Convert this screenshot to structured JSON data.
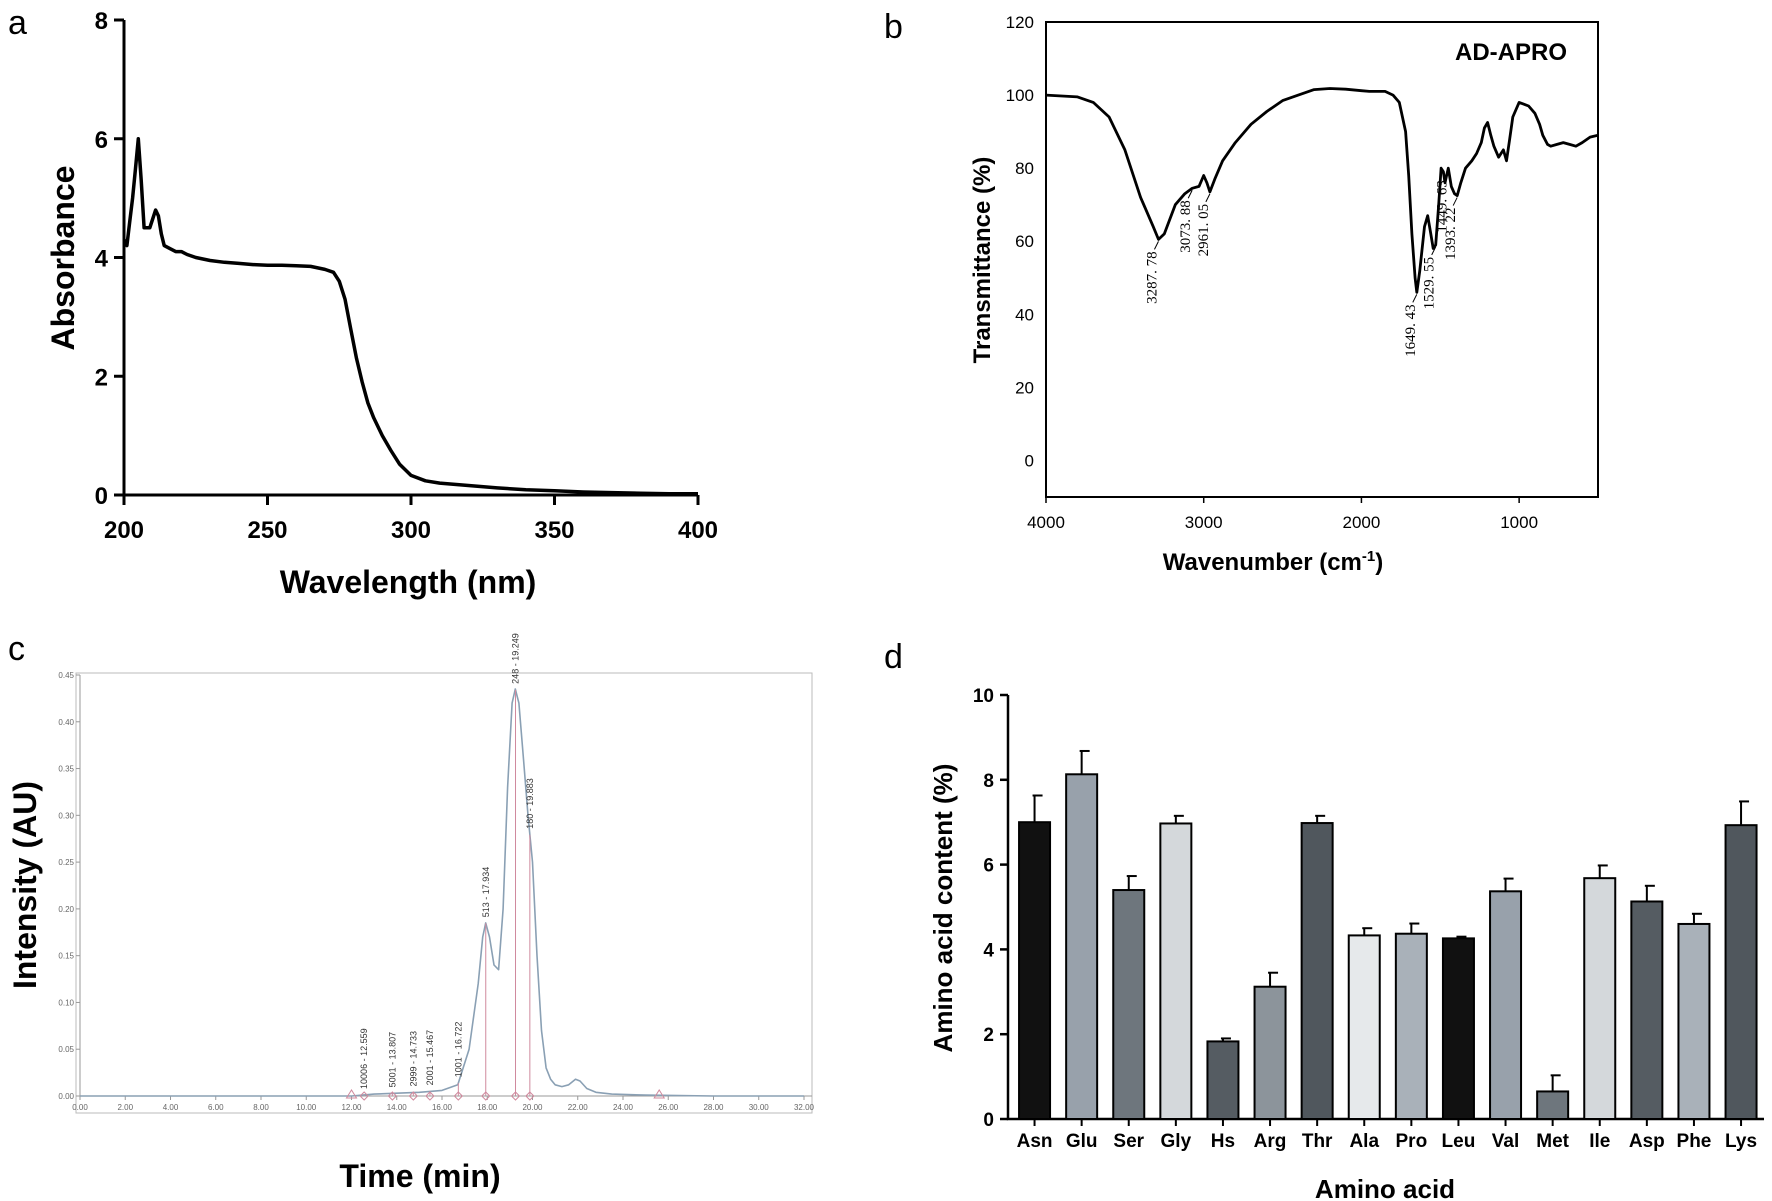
{
  "panels": {
    "a": {
      "label": "a"
    },
    "b": {
      "label": "b"
    },
    "c": {
      "label": "c"
    },
    "d": {
      "label": "d"
    }
  },
  "chart_data": [
    {
      "panel": "a",
      "type": "line",
      "title": "",
      "xlabel": "Wavelength (nm)",
      "ylabel": "Absorbance",
      "xlim": [
        200,
        400
      ],
      "ylim": [
        0,
        8
      ],
      "xticks": [
        200,
        250,
        300,
        350,
        400
      ],
      "yticks": [
        0,
        2,
        4,
        6,
        8
      ],
      "grid": false,
      "series": [
        {
          "x": [
            200,
            201,
            202,
            203,
            204,
            205,
            206,
            207,
            208,
            209,
            210,
            211,
            212,
            213,
            214,
            216,
            218,
            220,
            222,
            225,
            230,
            235,
            240,
            245,
            250,
            255,
            260,
            265,
            270,
            273,
            275,
            277,
            279,
            281,
            283,
            285,
            287,
            290,
            293,
            296,
            300,
            305,
            310,
            320,
            330,
            340,
            350,
            360,
            370,
            380,
            390,
            400
          ],
          "y": [
            4.3,
            4.2,
            4.6,
            5.0,
            5.5,
            6.0,
            5.3,
            4.5,
            4.5,
            4.5,
            4.65,
            4.8,
            4.7,
            4.4,
            4.2,
            4.15,
            4.1,
            4.1,
            4.05,
            4.0,
            3.95,
            3.92,
            3.9,
            3.88,
            3.87,
            3.87,
            3.86,
            3.85,
            3.8,
            3.75,
            3.6,
            3.3,
            2.8,
            2.3,
            1.9,
            1.55,
            1.3,
            1.0,
            0.75,
            0.52,
            0.33,
            0.24,
            0.2,
            0.16,
            0.12,
            0.09,
            0.07,
            0.05,
            0.04,
            0.03,
            0.02,
            0.02
          ]
        }
      ]
    },
    {
      "panel": "b",
      "type": "line",
      "title": "",
      "xlabel": "Wavenumber (cm",
      "xlabel_sup": "-1",
      "xlabel_end": ")",
      "ylabel": "Transmittance (%)",
      "xlim": [
        4000,
        500
      ],
      "ylim": [
        -10,
        120
      ],
      "xticks": [
        4000,
        3000,
        2000,
        1000
      ],
      "yticks": [
        0,
        20,
        40,
        60,
        80,
        100,
        120
      ],
      "grid": false,
      "legend": "AD-APRO",
      "series": [
        {
          "name": "AD-APRO",
          "x": [
            4000,
            3800,
            3700,
            3600,
            3500,
            3400,
            3320,
            3287,
            3250,
            3180,
            3120,
            3073,
            3030,
            3000,
            2980,
            2961,
            2930,
            2880,
            2800,
            2700,
            2600,
            2500,
            2400,
            2300,
            2200,
            2100,
            2000,
            1950,
            1900,
            1850,
            1800,
            1760,
            1720,
            1700,
            1680,
            1660,
            1649,
            1630,
            1600,
            1580,
            1560,
            1545,
            1529,
            1510,
            1495,
            1480,
            1470,
            1460,
            1449,
            1430,
            1410,
            1393,
            1370,
            1340,
            1300,
            1270,
            1240,
            1220,
            1200,
            1180,
            1160,
            1130,
            1100,
            1080,
            1060,
            1040,
            1000,
            970,
            940,
            900,
            870,
            850,
            820,
            800,
            760,
            720,
            680,
            640,
            600,
            550,
            500
          ],
          "y": [
            100,
            99.5,
            98,
            94,
            85,
            72,
            64,
            60.5,
            62,
            70,
            73,
            74.5,
            75,
            78,
            76,
            73.5,
            77,
            82,
            87,
            92,
            95.5,
            98.5,
            100,
            101.5,
            101.8,
            101.6,
            101.2,
            101,
            101,
            101,
            100,
            98,
            90,
            78,
            62,
            50,
            46,
            52,
            64,
            67,
            62,
            58,
            59,
            70,
            80,
            79,
            76,
            78,
            80,
            75,
            73,
            72.5,
            76,
            80,
            82,
            84,
            87,
            91,
            92.5,
            89,
            86,
            83,
            85,
            82,
            88,
            94,
            98,
            97.5,
            97,
            95,
            92,
            89,
            86.5,
            86,
            86.5,
            87,
            86.5,
            86,
            87,
            88.5,
            89
          ]
        }
      ],
      "annotations": [
        {
          "x": 3287,
          "y": 60.5,
          "text": "3287. 78"
        },
        {
          "x": 3073,
          "y": 74.5,
          "text": "3073. 88"
        },
        {
          "x": 2961,
          "y": 73.5,
          "text": "2961. 05"
        },
        {
          "x": 1649,
          "y": 46,
          "text": "1649. 43"
        },
        {
          "x": 1529,
          "y": 59,
          "text": "1529. 55"
        },
        {
          "x": 1449,
          "y": 80,
          "text": "1449. 63"
        },
        {
          "x": 1393,
          "y": 72.5,
          "text": "1393. 22"
        }
      ]
    },
    {
      "panel": "c",
      "type": "line",
      "title": "",
      "xlabel": "Time (min)",
      "ylabel": "Intensity (AU)",
      "xlim": [
        0,
        32
      ],
      "ylim": [
        0,
        0.45
      ],
      "xticks": [
        "0.00",
        "2.00",
        "4.00",
        "6.00",
        "8.00",
        "10.00",
        "12.00",
        "14.00",
        "16.00",
        "18.00",
        "20.00",
        "22.00",
        "24.00",
        "26.00",
        "28.00",
        "30.00",
        "32.00"
      ],
      "yticks": [
        "0.00",
        "0.05",
        "0.10",
        "0.15",
        "0.20",
        "0.25",
        "0.30",
        "0.35",
        "0.40",
        "0.45"
      ],
      "grid": false,
      "series": [
        {
          "x": [
            0,
            10,
            12,
            12.5,
            13,
            14,
            15,
            16,
            16.7,
            17.2,
            17.6,
            17.8,
            17.93,
            18.1,
            18.3,
            18.5,
            18.7,
            18.9,
            19.1,
            19.24,
            19.4,
            19.6,
            19.8,
            20.0,
            20.2,
            20.4,
            20.6,
            20.8,
            21.0,
            21.3,
            21.6,
            21.9,
            22.1,
            22.4,
            22.8,
            23.5,
            25,
            28,
            32
          ],
          "y": [
            0,
            0,
            0,
            0.001,
            0.002,
            0.003,
            0.004,
            0.006,
            0.012,
            0.05,
            0.12,
            0.17,
            0.185,
            0.17,
            0.14,
            0.135,
            0.2,
            0.33,
            0.42,
            0.435,
            0.42,
            0.36,
            0.3,
            0.25,
            0.15,
            0.07,
            0.03,
            0.018,
            0.012,
            0.01,
            0.012,
            0.018,
            0.016,
            0.008,
            0.004,
            0.002,
            0.001,
            0,
            0
          ]
        }
      ],
      "annotations": [
        {
          "x": 12.559,
          "text": "10006 - 12.559"
        },
        {
          "x": 13.807,
          "text": "5001 - 13.807"
        },
        {
          "x": 14.733,
          "text": "2999 - 14.733"
        },
        {
          "x": 15.467,
          "text": "2001 - 15.467"
        },
        {
          "x": 16.722,
          "text": "1001 - 16.722"
        },
        {
          "x": 17.934,
          "text": "513 - 17.934"
        },
        {
          "x": 19.249,
          "text": "248 - 19.249"
        },
        {
          "x": 19.883,
          "text": "180 - 19.883"
        }
      ]
    },
    {
      "panel": "d",
      "type": "bar",
      "title": "",
      "xlabel": "Amino acid",
      "ylabel": "Amino acid content (%)",
      "ylim": [
        0,
        10
      ],
      "yticks": [
        0,
        2,
        4,
        6,
        8,
        10
      ],
      "grid": false,
      "categories": [
        "Asn",
        "Glu",
        "Ser",
        "Gly",
        "Hs",
        "Arg",
        "Thr",
        "Ala",
        "Pro",
        "Leu",
        "Val",
        "Met",
        "Ile",
        "Asp",
        "Phe",
        "Lys"
      ],
      "values": [
        7.0,
        8.13,
        5.4,
        6.97,
        1.83,
        3.12,
        6.98,
        4.33,
        4.37,
        4.26,
        5.37,
        0.65,
        5.68,
        5.13,
        4.6,
        6.93
      ],
      "errors": [
        0.63,
        0.55,
        0.33,
        0.18,
        0.07,
        0.33,
        0.17,
        0.17,
        0.24,
        0.04,
        0.3,
        0.38,
        0.3,
        0.37,
        0.24,
        0.56
      ],
      "colors": [
        "#111111",
        "#98a1ab",
        "#6e767d",
        "#d4d8db",
        "#555c62",
        "#8c949b",
        "#50575d",
        "#e6e9eb",
        "#a9b1b9",
        "#111111",
        "#98a1ab",
        "#6e767d",
        "#d4d8db",
        "#555c62",
        "#a9b1b9",
        "#50575d"
      ]
    }
  ]
}
